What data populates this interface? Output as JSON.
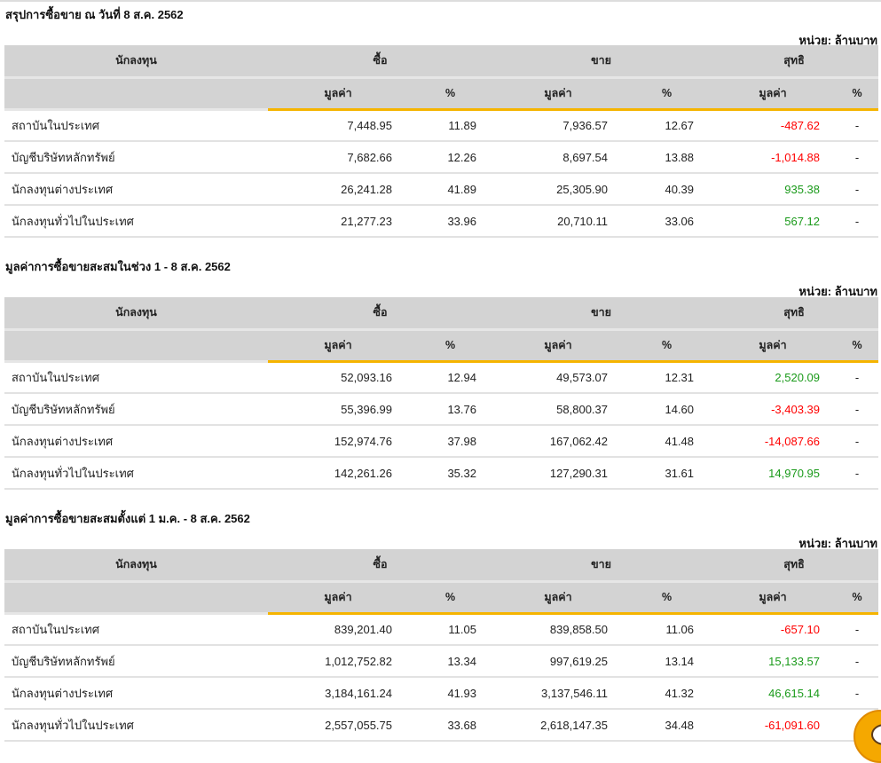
{
  "unit_label": "หน่วย: ล้านบาท",
  "headers": {
    "investor": "นักลงทุน",
    "buy": "ซื้อ",
    "sell": "ขาย",
    "net": "สุทธิ",
    "value": "มูลค่า",
    "percent": "%"
  },
  "sections": [
    {
      "title": "สรุปการซื้อขาย ณ วันที่ 8 ส.ค. 2562",
      "rows": [
        {
          "investor": "สถาบันในประเทศ",
          "buy_value": "7,448.95",
          "buy_pct": "11.89",
          "sell_value": "7,936.57",
          "sell_pct": "12.67",
          "net_value": "-487.62",
          "net_pct": "-"
        },
        {
          "investor": "บัญชีบริษัทหลักทรัพย์",
          "buy_value": "7,682.66",
          "buy_pct": "12.26",
          "sell_value": "8,697.54",
          "sell_pct": "13.88",
          "net_value": "-1,014.88",
          "net_pct": "-"
        },
        {
          "investor": "นักลงทุนต่างประเทศ",
          "buy_value": "26,241.28",
          "buy_pct": "41.89",
          "sell_value": "25,305.90",
          "sell_pct": "40.39",
          "net_value": "935.38",
          "net_pct": "-"
        },
        {
          "investor": "นักลงทุนทั่วไปในประเทศ",
          "buy_value": "21,277.23",
          "buy_pct": "33.96",
          "sell_value": "20,710.11",
          "sell_pct": "33.06",
          "net_value": "567.12",
          "net_pct": "-"
        }
      ]
    },
    {
      "title": "มูลค่าการซื้อขายสะสมในช่วง 1 - 8 ส.ค. 2562",
      "rows": [
        {
          "investor": "สถาบันในประเทศ",
          "buy_value": "52,093.16",
          "buy_pct": "12.94",
          "sell_value": "49,573.07",
          "sell_pct": "12.31",
          "net_value": "2,520.09",
          "net_pct": "-"
        },
        {
          "investor": "บัญชีบริษัทหลักทรัพย์",
          "buy_value": "55,396.99",
          "buy_pct": "13.76",
          "sell_value": "58,800.37",
          "sell_pct": "14.60",
          "net_value": "-3,403.39",
          "net_pct": "-"
        },
        {
          "investor": "นักลงทุนต่างประเทศ",
          "buy_value": "152,974.76",
          "buy_pct": "37.98",
          "sell_value": "167,062.42",
          "sell_pct": "41.48",
          "net_value": "-14,087.66",
          "net_pct": "-"
        },
        {
          "investor": "นักลงทุนทั่วไปในประเทศ",
          "buy_value": "142,261.26",
          "buy_pct": "35.32",
          "sell_value": "127,290.31",
          "sell_pct": "31.61",
          "net_value": "14,970.95",
          "net_pct": "-"
        }
      ]
    },
    {
      "title": "มูลค่าการซื้อขายสะสมตั้งแต่ 1 ม.ค. - 8 ส.ค. 2562",
      "rows": [
        {
          "investor": "สถาบันในประเทศ",
          "buy_value": "839,201.40",
          "buy_pct": "11.05",
          "sell_value": "839,858.50",
          "sell_pct": "11.06",
          "net_value": "-657.10",
          "net_pct": "-"
        },
        {
          "investor": "บัญชีบริษัทหลักทรัพย์",
          "buy_value": "1,012,752.82",
          "buy_pct": "13.34",
          "sell_value": "997,619.25",
          "sell_pct": "13.14",
          "net_value": "15,133.57",
          "net_pct": "-"
        },
        {
          "investor": "นักลงทุนต่างประเทศ",
          "buy_value": "3,184,161.24",
          "buy_pct": "41.93",
          "sell_value": "3,137,546.11",
          "sell_pct": "41.32",
          "net_value": "46,615.14",
          "net_pct": "-"
        },
        {
          "investor": "นักลงทุนทั่วไปในประเทศ",
          "buy_value": "2,557,055.75",
          "buy_pct": "33.68",
          "sell_value": "2,618,147.35",
          "sell_pct": "34.48",
          "net_value": "-61,091.60",
          "net_pct": "-"
        }
      ]
    }
  ],
  "colors": {
    "positive": "#1a9a1a",
    "negative": "#ff0000",
    "accent": "#f5b400"
  }
}
